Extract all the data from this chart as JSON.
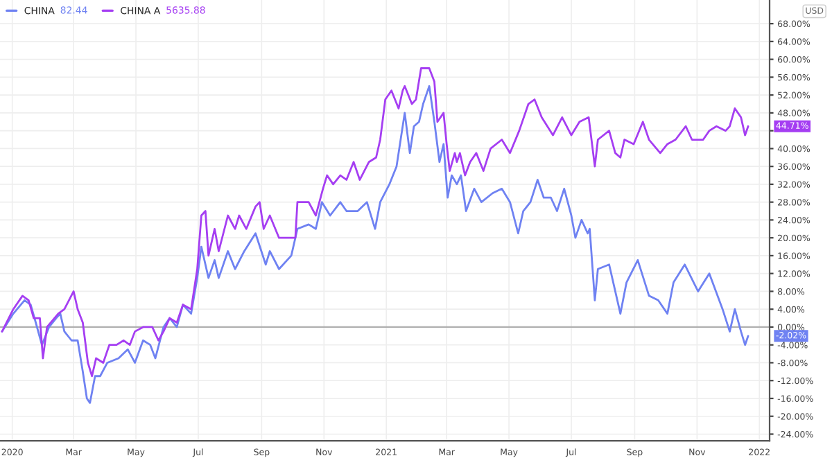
{
  "chart_data": {
    "type": "line",
    "legend": "top left",
    "grid": true,
    "series": [
      {
        "name": "CHINA",
        "color": "#6f82f2",
        "x": [
          "2019-12-22",
          "2020-01-02",
          "2020-01-13",
          "2020-01-19",
          "2020-01-24",
          "2020-01-30",
          "2020-02-06",
          "2020-02-13",
          "2020-02-17",
          "2020-02-21",
          "2020-02-28",
          "2020-03-05",
          "2020-03-10",
          "2020-03-14",
          "2020-03-17",
          "2020-03-22",
          "2020-03-27",
          "2020-04-03",
          "2020-04-14",
          "2020-04-23",
          "2020-04-30",
          "2020-05-08",
          "2020-05-15",
          "2020-05-20",
          "2020-05-28",
          "2020-06-03",
          "2020-06-10",
          "2020-06-16",
          "2020-06-24",
          "2020-06-30",
          "2020-07-04",
          "2020-07-11",
          "2020-07-17",
          "2020-07-21",
          "2020-07-30",
          "2020-08-06",
          "2020-08-15",
          "2020-08-26",
          "2020-09-05",
          "2020-09-09",
          "2020-09-18",
          "2020-09-30",
          "2020-10-06",
          "2020-10-17",
          "2020-10-24",
          "2020-10-30",
          "2020-11-07",
          "2020-11-17",
          "2020-11-23",
          "2020-12-04",
          "2020-12-13",
          "2020-12-21",
          "2020-12-26",
          "2021-01-04",
          "2021-01-11",
          "2021-01-15",
          "2021-01-19",
          "2021-01-24",
          "2021-01-28",
          "2021-02-02",
          "2021-02-06",
          "2021-02-12",
          "2021-02-17",
          "2021-02-22",
          "2021-02-26",
          "2021-03-02",
          "2021-03-06",
          "2021-03-11",
          "2021-03-15",
          "2021-03-20",
          "2021-03-28",
          "2021-04-04",
          "2021-04-15",
          "2021-04-24",
          "2021-05-02",
          "2021-05-10",
          "2021-05-15",
          "2021-05-22",
          "2021-05-29",
          "2021-06-04",
          "2021-06-11",
          "2021-06-17",
          "2021-06-24",
          "2021-07-01",
          "2021-07-05",
          "2021-07-11",
          "2021-07-17",
          "2021-07-19",
          "2021-07-24",
          "2021-07-27",
          "2021-08-07",
          "2021-08-13",
          "2021-08-18",
          "2021-08-24",
          "2021-09-04",
          "2021-09-15",
          "2021-09-24",
          "2021-10-03",
          "2021-10-09",
          "2021-10-20",
          "2021-11-02",
          "2021-11-13",
          "2021-11-26",
          "2021-12-03",
          "2021-12-08",
          "2021-12-14",
          "2021-12-18",
          "2021-12-21"
        ],
        "values": [
          -1,
          3,
          6,
          5,
          1,
          -4,
          0,
          2,
          3,
          -1,
          -3,
          -3,
          -10,
          -16,
          -17,
          -11,
          -11,
          -8,
          -7,
          -5,
          -8,
          -3,
          -4,
          -7,
          0,
          2,
          0,
          5,
          3,
          11,
          18,
          11,
          15,
          11,
          17,
          13,
          17,
          21,
          14,
          17,
          13,
          16,
          22,
          23,
          22,
          28,
          25,
          28,
          26,
          26,
          28,
          22,
          28,
          32,
          36,
          42,
          48,
          39,
          45,
          46,
          50,
          54,
          46,
          37,
          41,
          29,
          34,
          32,
          34,
          26,
          31,
          28,
          30,
          31,
          28,
          21,
          26,
          28,
          33,
          29,
          29,
          26,
          31,
          25,
          20,
          24,
          21,
          22,
          6,
          13,
          14,
          8,
          3,
          10,
          15,
          7,
          6,
          3,
          10,
          14,
          8,
          12,
          4,
          -1,
          4,
          -1,
          -4,
          -2
        ]
      },
      {
        "name": "CHINA A",
        "color": "#a53ef2",
        "x": [
          "2019-12-22",
          "2020-01-02",
          "2020-01-11",
          "2020-01-17",
          "2020-01-22",
          "2020-01-28",
          "2020-01-31",
          "2020-02-04",
          "2020-02-15",
          "2020-02-21",
          "2020-03-01",
          "2020-03-05",
          "2020-03-10",
          "2020-03-15",
          "2020-03-19",
          "2020-03-23",
          "2020-03-30",
          "2020-04-05",
          "2020-04-12",
          "2020-04-19",
          "2020-04-25",
          "2020-04-30",
          "2020-05-08",
          "2020-05-17",
          "2020-05-23",
          "2020-05-28",
          "2020-06-03",
          "2020-06-10",
          "2020-06-16",
          "2020-06-24",
          "2020-06-30",
          "2020-07-04",
          "2020-07-08",
          "2020-07-11",
          "2020-07-17",
          "2020-07-21",
          "2020-07-30",
          "2020-08-06",
          "2020-08-10",
          "2020-08-17",
          "2020-08-26",
          "2020-08-30",
          "2020-09-03",
          "2020-09-09",
          "2020-09-18",
          "2020-10-04",
          "2020-10-06",
          "2020-10-17",
          "2020-10-24",
          "2020-10-31",
          "2020-11-04",
          "2020-11-10",
          "2020-11-17",
          "2020-11-23",
          "2020-11-30",
          "2020-12-06",
          "2020-12-15",
          "2020-12-22",
          "2020-12-26",
          "2020-12-31",
          "2021-01-06",
          "2021-01-13",
          "2021-01-17",
          "2021-01-19",
          "2021-01-26",
          "2021-01-30",
          "2021-02-04",
          "2021-02-12",
          "2021-02-17",
          "2021-02-20",
          "2021-02-26",
          "2021-03-01",
          "2021-03-04",
          "2021-03-09",
          "2021-03-11",
          "2021-03-14",
          "2021-03-19",
          "2021-03-24",
          "2021-03-30",
          "2021-04-06",
          "2021-04-13",
          "2021-04-24",
          "2021-05-02",
          "2021-05-11",
          "2021-05-20",
          "2021-05-26",
          "2021-06-02",
          "2021-06-13",
          "2021-06-22",
          "2021-07-01",
          "2021-07-09",
          "2021-07-18",
          "2021-07-24",
          "2021-07-27",
          "2021-08-07",
          "2021-08-13",
          "2021-08-18",
          "2021-08-22",
          "2021-08-31",
          "2021-09-09",
          "2021-09-15",
          "2021-09-26",
          "2021-10-03",
          "2021-10-11",
          "2021-10-21",
          "2021-10-27",
          "2021-11-07",
          "2021-11-13",
          "2021-11-20",
          "2021-11-29",
          "2021-12-03",
          "2021-12-08",
          "2021-12-14",
          "2021-12-18",
          "2021-12-21"
        ],
        "values": [
          -1,
          4,
          7,
          6,
          2,
          2,
          -7,
          0,
          3,
          4,
          8,
          4,
          1,
          -8,
          -11,
          -7,
          -8,
          -4,
          -4,
          -3,
          -4,
          -1,
          0,
          0,
          -3,
          -1,
          2,
          1,
          5,
          4,
          13,
          25,
          26,
          16,
          22,
          17,
          25,
          22,
          25,
          22,
          27,
          28,
          22,
          25,
          20,
          20,
          28,
          28,
          25,
          31,
          34,
          32,
          34,
          33,
          37,
          33,
          37,
          38,
          42,
          51,
          53,
          49,
          53,
          54,
          50,
          51,
          58,
          58,
          55,
          46,
          48,
          41,
          35,
          39,
          37,
          39,
          34,
          37,
          39,
          35,
          40,
          42,
          39,
          44,
          50,
          51,
          47,
          43,
          47,
          43,
          46,
          47,
          36,
          42,
          44,
          39,
          38,
          42,
          41,
          46,
          42,
          39,
          41,
          42,
          45,
          42,
          42,
          44,
          45,
          44,
          45,
          49,
          47,
          43,
          45
        ]
      }
    ],
    "xlim": [
      "2019-12-20",
      "2022-01-11"
    ],
    "xticks": [
      {
        "value": "2020-01-01",
        "label": "2020"
      },
      {
        "value": "2020-03-01",
        "label": "Mar"
      },
      {
        "value": "2020-05-01",
        "label": "May"
      },
      {
        "value": "2020-07-01",
        "label": "Jul"
      },
      {
        "value": "2020-09-01",
        "label": "Sep"
      },
      {
        "value": "2020-11-01",
        "label": "Nov"
      },
      {
        "value": "2021-01-01",
        "label": "2021"
      },
      {
        "value": "2021-03-01",
        "label": "Mar"
      },
      {
        "value": "2021-05-01",
        "label": "May"
      },
      {
        "value": "2021-07-01",
        "label": "Jul"
      },
      {
        "value": "2021-09-01",
        "label": "Sep"
      },
      {
        "value": "2021-11-01",
        "label": "Nov"
      },
      {
        "value": "2022-01-01",
        "label": "2022"
      }
    ],
    "ylim": [
      -25.5,
      73.3
    ],
    "yticks": [
      {
        "value": -24,
        "label": "-24.00%"
      },
      {
        "value": -20,
        "label": "-20.00%"
      },
      {
        "value": -16,
        "label": "-16.00%"
      },
      {
        "value": -12,
        "label": "-12.00%"
      },
      {
        "value": -8,
        "label": "-8.00%"
      },
      {
        "value": -4,
        "label": "-4.00%"
      },
      {
        "value": 0,
        "label": "0.00%"
      },
      {
        "value": 4,
        "label": "4.00%"
      },
      {
        "value": 8,
        "label": "8.00%"
      },
      {
        "value": 12,
        "label": "12.00%"
      },
      {
        "value": 16,
        "label": "16.00%"
      },
      {
        "value": 20,
        "label": "20.00%"
      },
      {
        "value": 24,
        "label": "24.00%"
      },
      {
        "value": 28,
        "label": "28.00%"
      },
      {
        "value": 32,
        "label": "32.00%"
      },
      {
        "value": 36,
        "label": "36.00%"
      },
      {
        "value": 40,
        "label": "40.00%"
      },
      {
        "value": 44,
        "label": null
      },
      {
        "value": 48,
        "label": "48.00%"
      },
      {
        "value": 52,
        "label": "52.00%"
      },
      {
        "value": 56,
        "label": "56.00%"
      },
      {
        "value": 60,
        "label": "60.00%"
      },
      {
        "value": 64,
        "label": "64.00%"
      },
      {
        "value": 68,
        "label": "68.00%"
      }
    ],
    "ref_lines": [
      {
        "axis": "y",
        "value": 0,
        "color": "#b0b0b0"
      }
    ],
    "annotations": [
      "82.44",
      "5635.88",
      "USD",
      "-2.02%",
      "44.71%"
    ]
  }
}
